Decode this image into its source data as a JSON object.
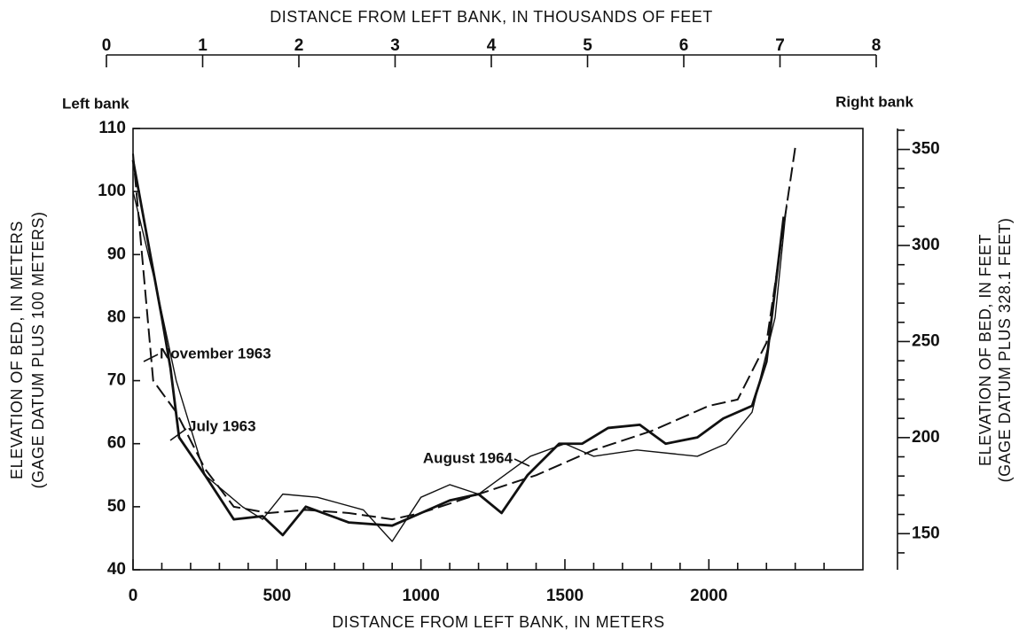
{
  "chart_data": {
    "type": "line",
    "x_label": "DISTANCE FROM LEFT BANK, IN METERS",
    "x2_label": "DISTANCE FROM LEFT BANK, IN THOUSANDS OF FEET",
    "y_label": [
      "ELEVATION OF BED, IN METERS",
      "(GAGE DATUM PLUS 100 METERS)"
    ],
    "y2_label": [
      "ELEVATION OF BED, IN FEET",
      "(GAGE DATUM PLUS 328.1 FEET)"
    ],
    "annotations": [
      "Left bank",
      "Right bank"
    ],
    "xlim": [
      0,
      2535
    ],
    "xticks": [
      0,
      500,
      1000,
      1500,
      2000
    ],
    "x_minor_ticks": [
      100,
      200,
      300,
      400,
      600,
      700,
      800,
      900,
      1100,
      1200,
      1300,
      1400,
      1600,
      1700,
      1800,
      1900,
      2100,
      2200,
      2300,
      2400
    ],
    "x2lim": [
      0,
      8
    ],
    "x2ticks": [
      0,
      1,
      2,
      3,
      4,
      5,
      6,
      7,
      8
    ],
    "ylim": [
      40,
      110
    ],
    "yticks": [
      40,
      50,
      60,
      70,
      80,
      90,
      100,
      110
    ],
    "y2lim": [
      131.2,
      360.9
    ],
    "y2ticks": [
      150,
      200,
      250,
      300,
      350
    ],
    "y2_minor_ticks": [
      140,
      160,
      170,
      180,
      190,
      210,
      220,
      230,
      240,
      260,
      270,
      280,
      290,
      310,
      320,
      330,
      340,
      360
    ],
    "series": [
      {
        "name": "November 1963",
        "color": "#111111",
        "style": "thick",
        "x": [
          0,
          100,
          130,
          160,
          250,
          350,
          450,
          520,
          600,
          750,
          900,
          1000,
          1100,
          1200,
          1280,
          1370,
          1480,
          1560,
          1650,
          1760,
          1850,
          1960,
          2050,
          2150,
          2200,
          2260
        ],
        "values": [
          105,
          80,
          72,
          61,
          55,
          48,
          48.5,
          45.5,
          50,
          47.5,
          47,
          49,
          51,
          52,
          49,
          55,
          60,
          60,
          62.5,
          63,
          60,
          61,
          64,
          66,
          73,
          96
        ]
      },
      {
        "name": "July 1963",
        "color": "#111111",
        "style": "dashed",
        "x": [
          0,
          70,
          150,
          250,
          350,
          470,
          600,
          750,
          900,
          1000,
          1200,
          1400,
          1600,
          1800,
          2000,
          2100,
          2200,
          2300
        ],
        "values": [
          106,
          70,
          65,
          56,
          50,
          49,
          49.5,
          49,
          48,
          49,
          52,
          55,
          59,
          62,
          66,
          67,
          76,
          107
        ]
      },
      {
        "name": "August 1964",
        "color": "#111111",
        "style": "thin",
        "x": [
          0,
          80,
          150,
          250,
          380,
          450,
          520,
          640,
          800,
          900,
          1000,
          1100,
          1200,
          1380,
          1500,
          1600,
          1750,
          1960,
          2060,
          2150,
          2230,
          2270
        ],
        "values": [
          100,
          85,
          70,
          55,
          50,
          48,
          52,
          51.5,
          49.5,
          44.5,
          51.5,
          53.5,
          52,
          58,
          60,
          58,
          59,
          58,
          60,
          65,
          80,
          98
        ]
      }
    ]
  }
}
